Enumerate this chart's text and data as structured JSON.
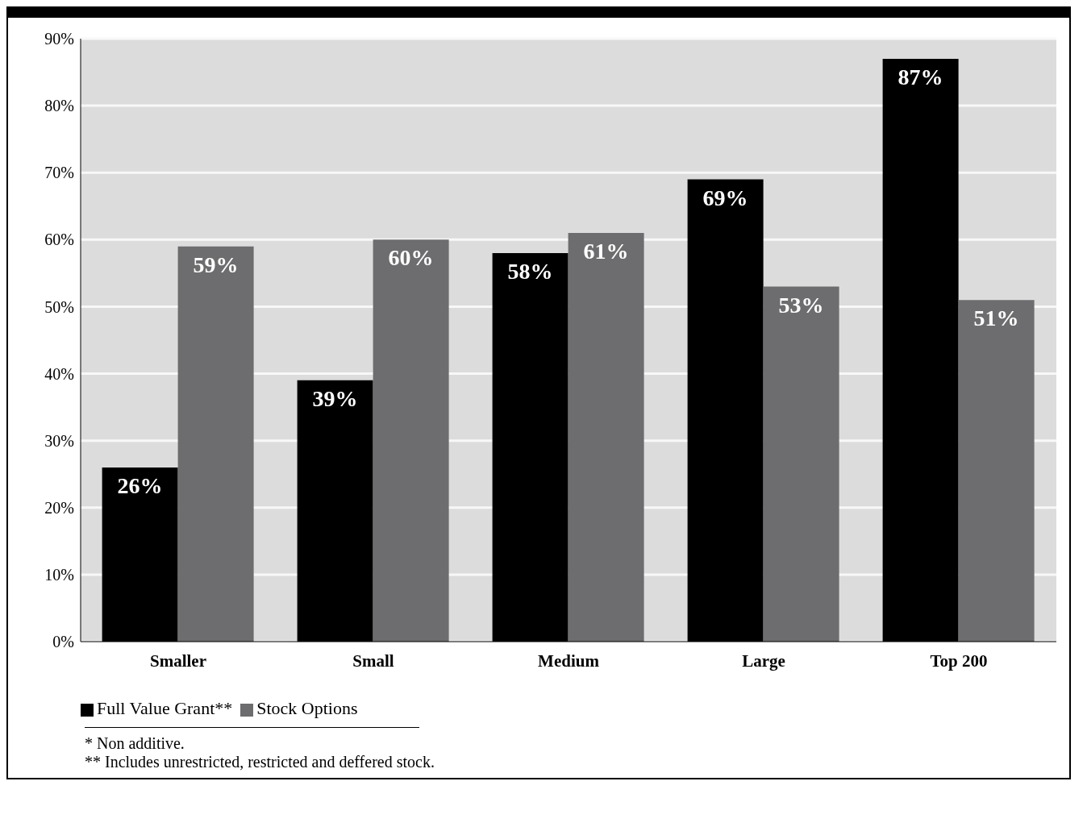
{
  "chart_data": {
    "type": "bar",
    "categories": [
      "Smaller",
      "Small",
      "Medium",
      "Large",
      "Top 200"
    ],
    "series": [
      {
        "name": "Full Value Grant**",
        "color": "#000000",
        "values": [
          26,
          39,
          58,
          69,
          87
        ],
        "value_labels": [
          "26%",
          "39%",
          "58%",
          "69%",
          "87%"
        ]
      },
      {
        "name": "Stock Options",
        "color": "#6d6d6f",
        "values": [
          59,
          60,
          61,
          53,
          51
        ],
        "value_labels": [
          "59%",
          "60%",
          "61%",
          "53%",
          "51%"
        ]
      }
    ],
    "ylim": [
      0,
      90
    ],
    "yticks": [
      {
        "value": 0,
        "label": "0%"
      },
      {
        "value": 10,
        "label": "10%"
      },
      {
        "value": 20,
        "label": "20%"
      },
      {
        "value": 30,
        "label": "30%"
      },
      {
        "value": 40,
        "label": "40%"
      },
      {
        "value": 50,
        "label": "50%"
      },
      {
        "value": 60,
        "label": "60%"
      },
      {
        "value": 70,
        "label": "70%"
      },
      {
        "value": 80,
        "label": "80%"
      },
      {
        "value": 90,
        "label": "90%"
      }
    ],
    "grid": "y",
    "legend": "bottom left",
    "annotations": [
      "* Non additive.",
      "** Includes unrestricted, restricted and deffered stock."
    ]
  }
}
